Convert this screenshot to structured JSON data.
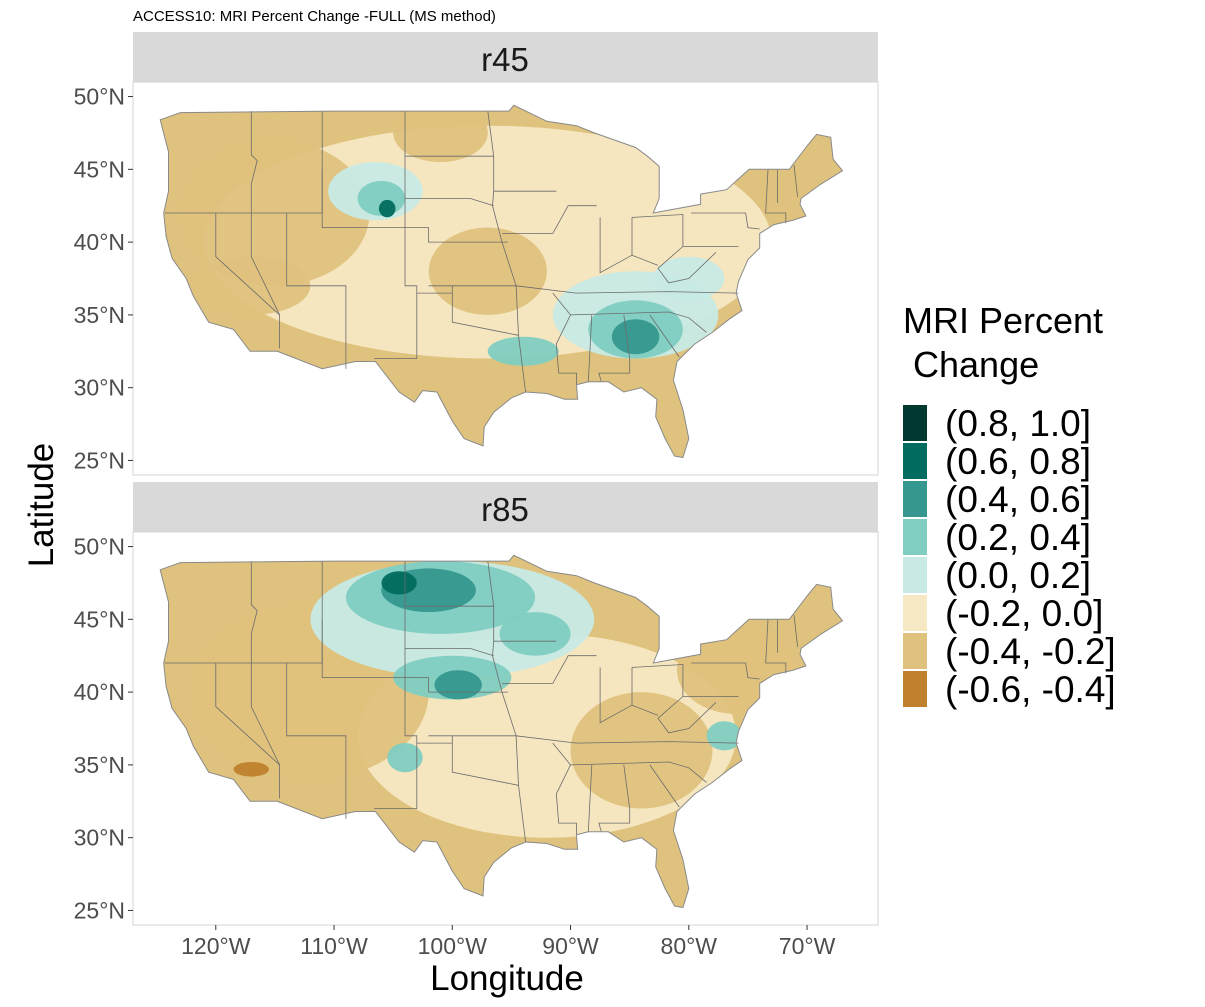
{
  "chart_data": {
    "type": "heatmap",
    "title": "ACCESS10: MRI Percent Change -FULL (MS method)",
    "xlabel": "Longitude",
    "ylabel": "Latitude",
    "xlim": [
      -127,
      -64
    ],
    "ylim": [
      24,
      51
    ],
    "x_ticks": [
      -120,
      -110,
      -100,
      -90,
      -80,
      -70
    ],
    "x_tick_labels": [
      "120°W",
      "110°W",
      "100°W",
      "90°W",
      "80°W",
      "70°W"
    ],
    "y_ticks": [
      25,
      30,
      35,
      40,
      45,
      50
    ],
    "y_tick_labels": [
      "25°N",
      "30°N",
      "35°N",
      "40°N",
      "45°N",
      "50°N"
    ],
    "grid": false,
    "legend_position": "right",
    "legend": {
      "title_line1": "MRI Percent",
      "title_line2": " Change",
      "bins": [
        {
          "label": "(0.8, 1.0]",
          "color": "#01382f"
        },
        {
          "label": "(0.6, 0.8]",
          "color": "#016c5f"
        },
        {
          "label": "(0.4, 0.6]",
          "color": "#35978f"
        },
        {
          "label": "(0.2, 0.4]",
          "color": "#80cdc1"
        },
        {
          "label": "(0.0, 0.2]",
          "color": "#c7eae5"
        },
        {
          "label": "(-0.2, 0.0]",
          "color": "#f6e8c3"
        },
        {
          "label": "(-0.4, -0.2]",
          "color": "#dfc27d"
        },
        {
          "label": "(-0.6, -0.4]",
          "color": "#bf812d"
        }
      ]
    },
    "panels": [
      {
        "name": "r45",
        "regions": [
          {
            "bin": 5,
            "lon": -97,
            "lat": 40,
            "rx": 24,
            "ry": 8
          },
          {
            "bin": 6,
            "lon": -115,
            "lat": 42,
            "rx": 8,
            "ry": 5
          },
          {
            "bin": 6,
            "lon": -97,
            "lat": 38,
            "rx": 5,
            "ry": 3
          },
          {
            "bin": 6,
            "lon": -101,
            "lat": 47.5,
            "rx": 4,
            "ry": 2
          },
          {
            "bin": 6,
            "lon": -117,
            "lat": 37,
            "rx": 5,
            "ry": 2
          },
          {
            "bin": 4,
            "lon": -106.5,
            "lat": 43.5,
            "rx": 4,
            "ry": 2
          },
          {
            "bin": 3,
            "lon": -106,
            "lat": 43,
            "rx": 2,
            "ry": 1.2
          },
          {
            "bin": 1,
            "lon": -105.5,
            "lat": 42.3,
            "rx": 0.7,
            "ry": 0.6
          },
          {
            "bin": 4,
            "lon": -84.5,
            "lat": 35,
            "rx": 7,
            "ry": 3
          },
          {
            "bin": 3,
            "lon": -84.5,
            "lat": 34,
            "rx": 4,
            "ry": 2
          },
          {
            "bin": 2,
            "lon": -84.5,
            "lat": 33.5,
            "rx": 2,
            "ry": 1.2
          },
          {
            "bin": 3,
            "lon": -94,
            "lat": 32.5,
            "rx": 3,
            "ry": 1
          },
          {
            "bin": 4,
            "lon": -80,
            "lat": 37.5,
            "rx": 3,
            "ry": 1.5
          }
        ]
      },
      {
        "name": "r85",
        "regions": [
          {
            "bin": 5,
            "lon": -92,
            "lat": 37,
            "rx": 16,
            "ry": 7
          },
          {
            "bin": 6,
            "lon": -112,
            "lat": 40,
            "rx": 10,
            "ry": 6
          },
          {
            "bin": 6,
            "lon": -84,
            "lat": 36,
            "rx": 6,
            "ry": 4
          },
          {
            "bin": 6,
            "lon": -76,
            "lat": 41.5,
            "rx": 5,
            "ry": 3
          },
          {
            "bin": 7,
            "lon": -117,
            "lat": 34.7,
            "rx": 1.5,
            "ry": 0.5
          },
          {
            "bin": 4,
            "lon": -100,
            "lat": 45,
            "rx": 12,
            "ry": 4
          },
          {
            "bin": 3,
            "lon": -101,
            "lat": 46.5,
            "rx": 8,
            "ry": 2.5
          },
          {
            "bin": 2,
            "lon": -102,
            "lat": 47,
            "rx": 4,
            "ry": 1.5
          },
          {
            "bin": 1,
            "lon": -104.5,
            "lat": 47.5,
            "rx": 1.5,
            "ry": 0.8
          },
          {
            "bin": 3,
            "lon": -100,
            "lat": 41,
            "rx": 5,
            "ry": 1.5
          },
          {
            "bin": 2,
            "lon": -99.5,
            "lat": 40.5,
            "rx": 2,
            "ry": 1
          },
          {
            "bin": 3,
            "lon": -93,
            "lat": 44,
            "rx": 3,
            "ry": 1.5
          },
          {
            "bin": 3,
            "lon": -104,
            "lat": 35.5,
            "rx": 1.5,
            "ry": 1
          },
          {
            "bin": 3,
            "lon": -77,
            "lat": 37,
            "rx": 1.5,
            "ry": 1
          }
        ]
      }
    ]
  }
}
